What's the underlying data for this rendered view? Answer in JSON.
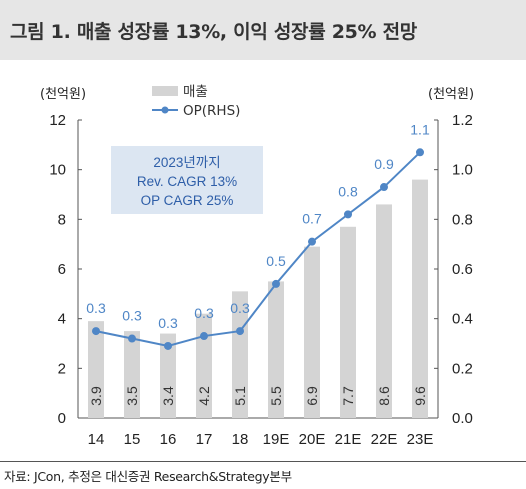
{
  "title": "그림 1. 매출 성장률 13%, 이익 성장률 25% 전망",
  "source": "자료: JCon, 추정은 대신증권 Research&Strategy본부",
  "colors": {
    "bar": "#d4d4d4",
    "line": "#4f86c6",
    "annotation_bg": "#dce6f2",
    "annotation_text": "#2e5ea8"
  },
  "chart_data": {
    "type": "bar+line",
    "categories": [
      "14",
      "15",
      "16",
      "17",
      "18",
      "19E",
      "20E",
      "21E",
      "22E",
      "23E"
    ],
    "series": [
      {
        "name": "매출",
        "type": "bar",
        "axis": "left",
        "values": [
          3.9,
          3.5,
          3.4,
          4.2,
          5.1,
          5.5,
          6.9,
          7.7,
          8.6,
          9.6
        ],
        "labels": [
          "3.9",
          "3.5",
          "3.4",
          "4.2",
          "5.1",
          "5.5",
          "6.9",
          "7.7",
          "8.6",
          "9.6"
        ]
      },
      {
        "name": "OP(RHS)",
        "type": "line",
        "axis": "right",
        "values": [
          0.35,
          0.32,
          0.29,
          0.33,
          0.35,
          0.54,
          0.71,
          0.82,
          0.93,
          1.07
        ],
        "labels": [
          "0.3",
          "0.3",
          "0.3",
          "0.3",
          "0.3",
          "0.5",
          "0.7",
          "0.8",
          "0.9",
          "1.1"
        ]
      }
    ],
    "y_left": {
      "unit": "(천억원)",
      "ylim": [
        0,
        12
      ],
      "ticks": [
        "0",
        "2",
        "4",
        "6",
        "8",
        "10",
        "12"
      ]
    },
    "y_right": {
      "unit": "(천억원)",
      "ylim": [
        0,
        1.2
      ],
      "ticks": [
        "0.0",
        "0.2",
        "0.4",
        "0.6",
        "0.8",
        "1.0",
        "1.2"
      ]
    },
    "legend": {
      "placement": "top-center",
      "entries": [
        "매출",
        "OP(RHS)"
      ]
    },
    "annotation": [
      "2023년까지",
      "Rev. CAGR 13%",
      "OP CAGR 25%"
    ],
    "grid": false
  }
}
